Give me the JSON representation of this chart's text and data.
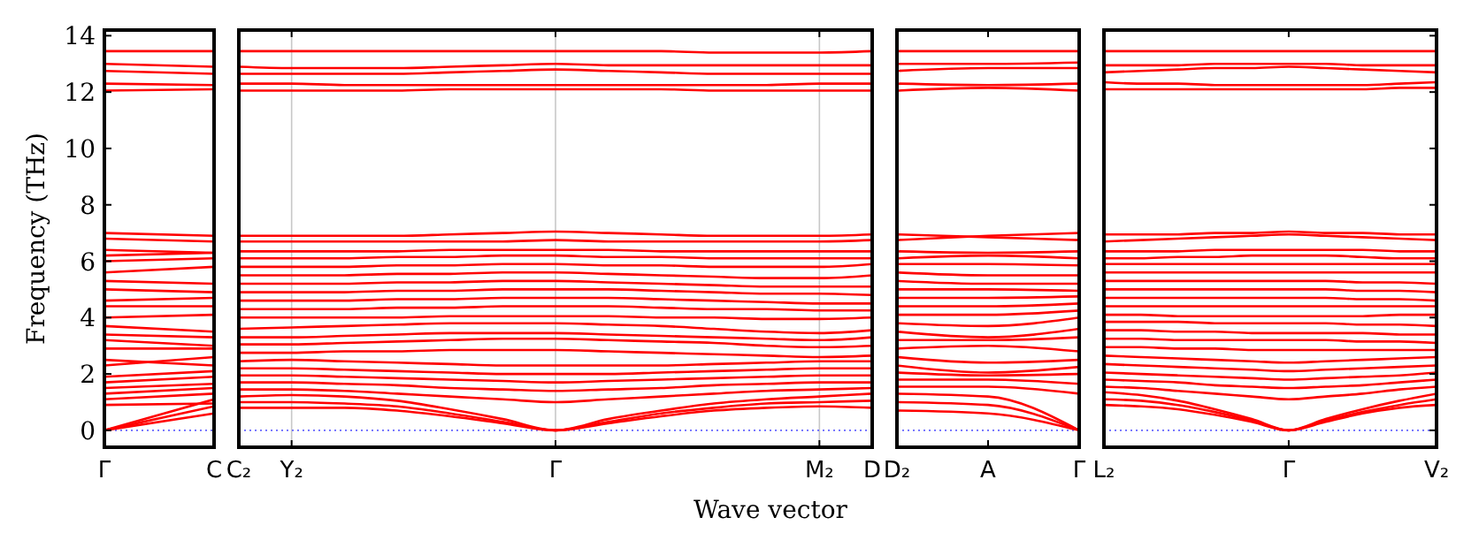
{
  "chart_data": [
    {
      "type": "line",
      "ylabel": "Frequency (THz)",
      "color": "#ff0000",
      "line_style": "solid",
      "categories": [
        "Γ",
        "C"
      ],
      "ylim": [
        -0.6,
        14.2
      ],
      "yticks": [
        0,
        2,
        4,
        6,
        8,
        10,
        12,
        14
      ],
      "ref_lines": [
        {
          "axis": "y",
          "value": 0,
          "color": "#6666ff",
          "line_style": "dotted"
        }
      ],
      "series": [
        {
          "values": [
            0,
            0.6
          ]
        },
        {
          "values": [
            0,
            0.85
          ]
        },
        {
          "values": [
            0,
            1.1
          ]
        },
        {
          "values": [
            0.9,
            0.95
          ]
        },
        {
          "values": [
            1.1,
            1.3
          ]
        },
        {
          "values": [
            1.3,
            1.5
          ]
        },
        {
          "values": [
            1.5,
            1.65
          ]
        },
        {
          "values": [
            1.7,
            1.9
          ]
        },
        {
          "values": [
            1.9,
            2.1
          ]
        },
        {
          "values": [
            2.3,
            2.6
          ]
        },
        {
          "values": [
            2.5,
            2.3
          ]
        },
        {
          "values": [
            2.9,
            2.9
          ]
        },
        {
          "values": [
            3.2,
            3.0
          ]
        },
        {
          "values": [
            3.4,
            3.3
          ]
        },
        {
          "values": [
            3.7,
            3.5
          ]
        },
        {
          "values": [
            4.0,
            4.1
          ]
        },
        {
          "values": [
            4.4,
            4.4
          ]
        },
        {
          "values": [
            4.6,
            4.7
          ]
        },
        {
          "values": [
            5.0,
            4.9
          ]
        },
        {
          "values": [
            5.3,
            5.2
          ]
        },
        {
          "values": [
            5.6,
            5.8
          ]
        },
        {
          "values": [
            6.0,
            6.1
          ]
        },
        {
          "values": [
            6.2,
            6.3
          ]
        },
        {
          "values": [
            6.4,
            6.3
          ]
        },
        {
          "values": [
            6.8,
            6.7
          ]
        },
        {
          "values": [
            7.0,
            6.9
          ]
        },
        {
          "values": [
            12.05,
            12.1
          ]
        },
        {
          "values": [
            12.3,
            12.25
          ]
        },
        {
          "values": [
            12.75,
            12.65
          ]
        },
        {
          "values": [
            13.0,
            12.9
          ]
        },
        {
          "values": [
            13.45,
            13.45
          ]
        }
      ]
    },
    {
      "type": "line",
      "xlabel": "Wave vector",
      "color": "#ff0000",
      "line_style": "solid",
      "grid": "x",
      "tick_labels": "x",
      "categories": [
        "C₂",
        "Y₂",
        null,
        null,
        null,
        null,
        "Γ",
        null,
        null,
        null,
        null,
        "M₂",
        "D"
      ],
      "ylim": [
        -0.6,
        14.2
      ],
      "yticks": [
        0,
        2,
        4,
        6,
        8,
        10,
        12,
        14
      ],
      "ref_lines": [
        {
          "axis": "y",
          "value": 0,
          "color": "#6666ff",
          "line_style": "dotted"
        }
      ],
      "series": [
        {
          "values": [
            0.8,
            0.8,
            0.8,
            0.7,
            0.5,
            0.25,
            0,
            0.25,
            0.5,
            0.7,
            0.8,
            0.85,
            0.8
          ]
        },
        {
          "values": [
            1.0,
            1.0,
            0.95,
            0.85,
            0.6,
            0.3,
            0,
            0.3,
            0.6,
            0.8,
            0.95,
            1.0,
            1.05
          ]
        },
        {
          "values": [
            1.2,
            1.25,
            1.2,
            1.05,
            0.75,
            0.4,
            0,
            0.4,
            0.7,
            0.95,
            1.1,
            1.2,
            1.3
          ]
        },
        {
          "values": [
            1.45,
            1.45,
            1.4,
            1.3,
            1.2,
            1.1,
            1.0,
            1.1,
            1.2,
            1.3,
            1.4,
            1.45,
            1.5
          ]
        },
        {
          "values": [
            1.7,
            1.7,
            1.65,
            1.6,
            1.5,
            1.45,
            1.4,
            1.45,
            1.5,
            1.6,
            1.65,
            1.7,
            1.7
          ]
        },
        {
          "values": [
            1.95,
            1.95,
            1.9,
            1.85,
            1.8,
            1.75,
            1.7,
            1.75,
            1.8,
            1.85,
            1.9,
            1.95,
            1.95
          ]
        },
        {
          "values": [
            2.2,
            2.2,
            2.15,
            2.1,
            2.05,
            2.0,
            2.0,
            2.0,
            2.05,
            2.1,
            2.15,
            2.2,
            2.2
          ]
        },
        {
          "values": [
            2.45,
            2.5,
            2.45,
            2.4,
            2.35,
            2.3,
            2.3,
            2.3,
            2.3,
            2.35,
            2.4,
            2.45,
            2.45
          ]
        },
        {
          "values": [
            2.75,
            2.75,
            2.8,
            2.8,
            2.85,
            2.85,
            2.85,
            2.8,
            2.75,
            2.7,
            2.65,
            2.6,
            2.65
          ]
        },
        {
          "values": [
            3.05,
            3.05,
            3.1,
            3.15,
            3.2,
            3.25,
            3.25,
            3.2,
            3.15,
            3.1,
            3.0,
            2.95,
            3.0
          ]
        },
        {
          "values": [
            3.3,
            3.3,
            3.35,
            3.4,
            3.45,
            3.45,
            3.45,
            3.4,
            3.35,
            3.3,
            3.25,
            3.2,
            3.3
          ]
        },
        {
          "values": [
            3.6,
            3.65,
            3.7,
            3.75,
            3.8,
            3.8,
            3.8,
            3.75,
            3.7,
            3.6,
            3.5,
            3.45,
            3.55
          ]
        },
        {
          "values": [
            4.0,
            4.0,
            4.0,
            4.0,
            4.05,
            4.05,
            4.05,
            4.05,
            4.0,
            4.0,
            3.95,
            3.95,
            4.0
          ]
        },
        {
          "values": [
            4.3,
            4.3,
            4.3,
            4.35,
            4.35,
            4.4,
            4.4,
            4.4,
            4.35,
            4.3,
            4.3,
            4.25,
            4.25
          ]
        },
        {
          "values": [
            4.6,
            4.6,
            4.6,
            4.65,
            4.65,
            4.7,
            4.7,
            4.7,
            4.65,
            4.6,
            4.55,
            4.5,
            4.5
          ]
        },
        {
          "values": [
            4.9,
            4.9,
            4.9,
            4.95,
            4.95,
            5.0,
            5.0,
            5.0,
            4.95,
            4.9,
            4.85,
            4.85,
            4.8
          ]
        },
        {
          "values": [
            5.2,
            5.2,
            5.2,
            5.25,
            5.25,
            5.3,
            5.3,
            5.25,
            5.2,
            5.15,
            5.1,
            5.1,
            5.1
          ]
        },
        {
          "values": [
            5.5,
            5.5,
            5.5,
            5.55,
            5.55,
            5.6,
            5.6,
            5.55,
            5.5,
            5.45,
            5.4,
            5.4,
            5.5
          ]
        },
        {
          "values": [
            5.8,
            5.8,
            5.8,
            5.85,
            5.85,
            5.9,
            5.9,
            5.85,
            5.85,
            5.8,
            5.8,
            5.8,
            5.9
          ]
        },
        {
          "values": [
            6.1,
            6.1,
            6.1,
            6.15,
            6.15,
            6.2,
            6.2,
            6.15,
            6.15,
            6.1,
            6.1,
            6.1,
            6.1
          ]
        },
        {
          "values": [
            6.35,
            6.35,
            6.35,
            6.35,
            6.4,
            6.4,
            6.4,
            6.4,
            6.35,
            6.35,
            6.35,
            6.35,
            6.35
          ]
        },
        {
          "values": [
            6.7,
            6.7,
            6.7,
            6.7,
            6.7,
            6.7,
            6.75,
            6.7,
            6.7,
            6.7,
            6.7,
            6.7,
            6.75
          ]
        },
        {
          "values": [
            6.9,
            6.9,
            6.9,
            6.9,
            6.95,
            7.0,
            7.05,
            7.0,
            6.95,
            6.9,
            6.9,
            6.9,
            6.95
          ]
        },
        {
          "values": [
            12.05,
            12.05,
            12.05,
            12.05,
            12.1,
            12.1,
            12.1,
            12.1,
            12.1,
            12.05,
            12.05,
            12.05,
            12.05
          ]
        },
        {
          "values": [
            12.3,
            12.3,
            12.25,
            12.25,
            12.25,
            12.25,
            12.25,
            12.25,
            12.25,
            12.25,
            12.25,
            12.3,
            12.3
          ]
        },
        {
          "values": [
            12.65,
            12.65,
            12.65,
            12.65,
            12.7,
            12.75,
            12.8,
            12.75,
            12.7,
            12.65,
            12.65,
            12.65,
            12.65
          ]
        },
        {
          "values": [
            12.9,
            12.85,
            12.85,
            12.85,
            12.9,
            12.95,
            13.0,
            12.95,
            12.95,
            12.95,
            12.95,
            12.95,
            12.95
          ]
        },
        {
          "values": [
            13.45,
            13.45,
            13.45,
            13.45,
            13.45,
            13.45,
            13.45,
            13.45,
            13.45,
            13.4,
            13.4,
            13.4,
            13.45
          ]
        }
      ]
    },
    {
      "type": "line",
      "color": "#ff0000",
      "line_style": "solid",
      "tick_labels": "x",
      "categories": [
        "D₂",
        "A",
        "Γ"
      ],
      "ylim": [
        -0.6,
        14.2
      ],
      "yticks": [
        0,
        2,
        4,
        6,
        8,
        10,
        12,
        14
      ],
      "ref_lines": [
        {
          "axis": "y",
          "value": 0,
          "color": "#6666ff",
          "line_style": "dotted"
        }
      ],
      "series": [
        {
          "values": [
            0.7,
            0.6,
            0
          ]
        },
        {
          "values": [
            1.0,
            0.9,
            0
          ]
        },
        {
          "values": [
            1.3,
            1.2,
            0
          ]
        },
        {
          "values": [
            1.55,
            1.55,
            1.3
          ]
        },
        {
          "values": [
            1.8,
            1.8,
            1.65
          ]
        },
        {
          "values": [
            2.05,
            1.95,
            2.0
          ]
        },
        {
          "values": [
            2.3,
            2.05,
            2.25
          ]
        },
        {
          "values": [
            2.6,
            2.4,
            2.5
          ]
        },
        {
          "values": [
            2.9,
            3.0,
            2.8
          ]
        },
        {
          "values": [
            3.2,
            3.2,
            3.3
          ]
        },
        {
          "values": [
            3.5,
            3.3,
            3.6
          ]
        },
        {
          "values": [
            3.8,
            3.7,
            4.0
          ]
        },
        {
          "values": [
            4.1,
            4.1,
            4.25
          ]
        },
        {
          "values": [
            4.4,
            4.4,
            4.5
          ]
        },
        {
          "values": [
            4.7,
            4.7,
            4.75
          ]
        },
        {
          "values": [
            5.0,
            5.0,
            4.95
          ]
        },
        {
          "values": [
            5.3,
            5.2,
            5.2
          ]
        },
        {
          "values": [
            5.6,
            5.5,
            5.5
          ]
        },
        {
          "values": [
            5.9,
            5.9,
            5.85
          ]
        },
        {
          "values": [
            6.1,
            6.2,
            6.1
          ]
        },
        {
          "values": [
            6.35,
            6.3,
            6.35
          ]
        },
        {
          "values": [
            6.75,
            6.9,
            7.0
          ]
        },
        {
          "values": [
            6.95,
            6.85,
            6.75
          ]
        },
        {
          "values": [
            12.05,
            12.15,
            12.05
          ]
        },
        {
          "values": [
            12.3,
            12.25,
            12.3
          ]
        },
        {
          "values": [
            12.75,
            12.85,
            12.85
          ]
        },
        {
          "values": [
            13.0,
            13.0,
            13.05
          ]
        },
        {
          "values": [
            13.45,
            13.45,
            13.45
          ]
        }
      ]
    },
    {
      "type": "line",
      "color": "#ff0000",
      "line_style": "solid",
      "tick_labels": "x",
      "categories": [
        "L₂",
        null,
        null,
        null,
        null,
        "Γ",
        null,
        null,
        null,
        "V₂"
      ],
      "ylim": [
        -0.6,
        14.2
      ],
      "yticks": [
        0,
        2,
        4,
        6,
        8,
        10,
        12,
        14
      ],
      "ref_lines": [
        {
          "axis": "y",
          "value": 0,
          "color": "#6666ff",
          "line_style": "dotted"
        }
      ],
      "series": [
        {
          "values": [
            0.9,
            0.85,
            0.75,
            0.55,
            0.3,
            0,
            0.3,
            0.6,
            0.8,
            0.9
          ]
        },
        {
          "values": [
            1.1,
            1.05,
            0.9,
            0.65,
            0.35,
            0,
            0.35,
            0.65,
            0.9,
            1.1
          ]
        },
        {
          "values": [
            1.35,
            1.25,
            1.05,
            0.75,
            0.4,
            0,
            0.4,
            0.75,
            1.05,
            1.3
          ]
        },
        {
          "values": [
            1.55,
            1.5,
            1.4,
            1.3,
            1.2,
            1.1,
            1.2,
            1.3,
            1.45,
            1.55
          ]
        },
        {
          "values": [
            1.8,
            1.75,
            1.7,
            1.6,
            1.55,
            1.5,
            1.55,
            1.6,
            1.7,
            1.8
          ]
        },
        {
          "values": [
            2.05,
            2.0,
            1.95,
            1.9,
            1.85,
            1.8,
            1.85,
            1.9,
            1.95,
            2.05
          ]
        },
        {
          "values": [
            2.35,
            2.3,
            2.25,
            2.2,
            2.15,
            2.1,
            2.15,
            2.2,
            2.25,
            2.3
          ]
        },
        {
          "values": [
            2.65,
            2.6,
            2.55,
            2.5,
            2.45,
            2.4,
            2.45,
            2.5,
            2.55,
            2.6
          ]
        },
        {
          "values": [
            2.95,
            2.95,
            2.9,
            2.9,
            2.85,
            2.85,
            2.85,
            2.85,
            2.85,
            2.85
          ]
        },
        {
          "values": [
            3.25,
            3.25,
            3.2,
            3.2,
            3.2,
            3.2,
            3.2,
            3.15,
            3.15,
            3.1
          ]
        },
        {
          "values": [
            3.55,
            3.55,
            3.5,
            3.5,
            3.45,
            3.45,
            3.45,
            3.45,
            3.4,
            3.4
          ]
        },
        {
          "values": [
            3.85,
            3.85,
            3.85,
            3.8,
            3.8,
            3.8,
            3.8,
            3.75,
            3.75,
            3.7
          ]
        },
        {
          "values": [
            4.1,
            4.1,
            4.05,
            4.05,
            4.05,
            4.05,
            4.05,
            4.05,
            4.1,
            4.1
          ]
        },
        {
          "values": [
            4.4,
            4.4,
            4.4,
            4.4,
            4.4,
            4.4,
            4.4,
            4.4,
            4.4,
            4.4
          ]
        },
        {
          "values": [
            4.7,
            4.7,
            4.7,
            4.7,
            4.7,
            4.7,
            4.7,
            4.65,
            4.65,
            4.6
          ]
        },
        {
          "values": [
            5.0,
            5.0,
            5.0,
            5.0,
            5.0,
            5.0,
            5.0,
            4.95,
            4.95,
            4.9
          ]
        },
        {
          "values": [
            5.3,
            5.3,
            5.3,
            5.3,
            5.3,
            5.3,
            5.3,
            5.25,
            5.25,
            5.2
          ]
        },
        {
          "values": [
            5.6,
            5.6,
            5.6,
            5.6,
            5.6,
            5.6,
            5.6,
            5.6,
            5.6,
            5.6
          ]
        },
        {
          "values": [
            5.9,
            5.9,
            5.9,
            5.9,
            5.9,
            5.9,
            5.9,
            5.9,
            5.9,
            5.9
          ]
        },
        {
          "values": [
            6.1,
            6.1,
            6.15,
            6.15,
            6.2,
            6.2,
            6.2,
            6.15,
            6.1,
            6.1
          ]
        },
        {
          "values": [
            6.35,
            6.35,
            6.35,
            6.4,
            6.4,
            6.4,
            6.4,
            6.4,
            6.35,
            6.35
          ]
        },
        {
          "values": [
            6.7,
            6.75,
            6.8,
            6.85,
            6.9,
            6.95,
            6.9,
            6.85,
            6.8,
            6.75
          ]
        },
        {
          "values": [
            6.95,
            6.95,
            6.95,
            7.0,
            7.0,
            7.05,
            7.0,
            7.0,
            6.95,
            6.95
          ]
        },
        {
          "values": [
            12.1,
            12.1,
            12.1,
            12.1,
            12.1,
            12.1,
            12.1,
            12.1,
            12.15,
            12.15
          ]
        },
        {
          "values": [
            12.35,
            12.3,
            12.3,
            12.25,
            12.25,
            12.25,
            12.25,
            12.25,
            12.3,
            12.35
          ]
        },
        {
          "values": [
            12.7,
            12.75,
            12.8,
            12.85,
            12.85,
            12.9,
            12.85,
            12.8,
            12.75,
            12.7
          ]
        },
        {
          "values": [
            12.95,
            12.95,
            12.95,
            13.0,
            13.0,
            13.0,
            13.0,
            12.95,
            12.95,
            12.95
          ]
        },
        {
          "values": [
            13.45,
            13.45,
            13.45,
            13.45,
            13.45,
            13.45,
            13.45,
            13.45,
            13.45,
            13.45
          ]
        }
      ]
    }
  ]
}
